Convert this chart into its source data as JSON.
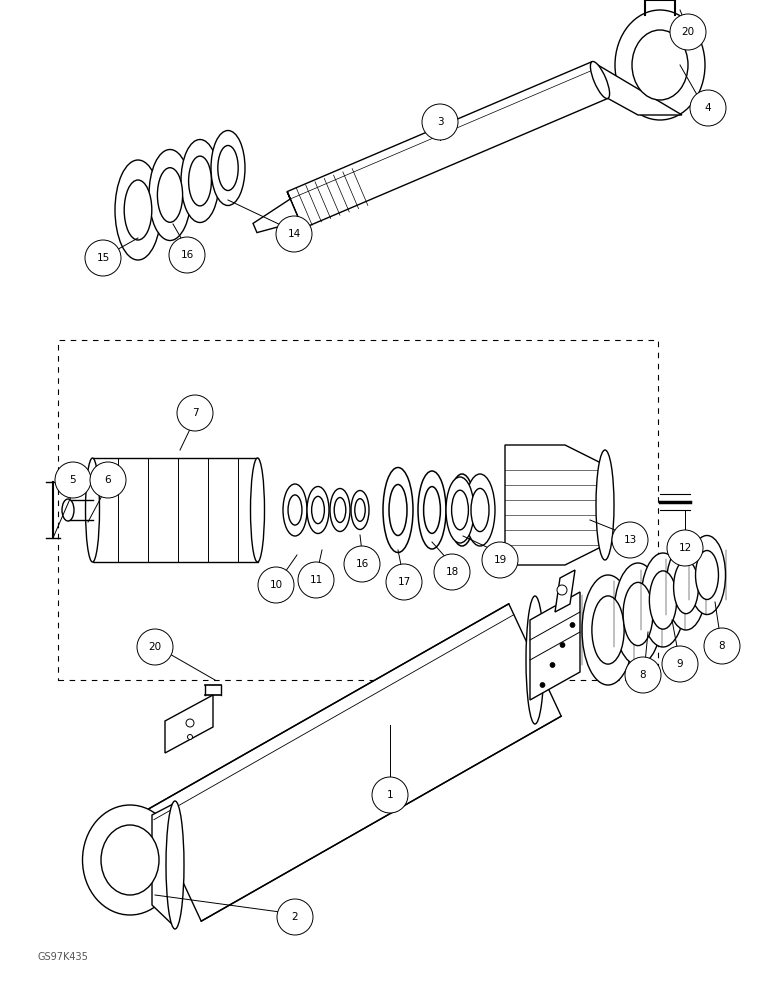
{
  "figure_size": [
    7.72,
    10.0
  ],
  "dpi": 100,
  "bg_color": "#ffffff",
  "watermark": "GS97K435",
  "lw": 1.0,
  "lw_thin": 0.7,
  "circle_r": 0.18,
  "font_size": 7.5
}
